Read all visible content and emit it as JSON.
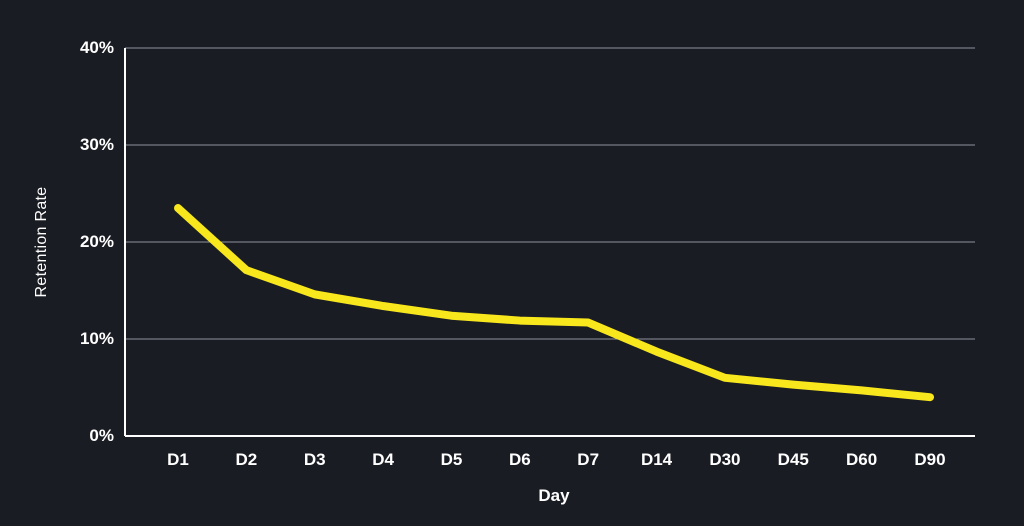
{
  "chart_data": {
    "type": "line",
    "title": "",
    "xlabel": "Day",
    "ylabel": "Retention Rate",
    "categories": [
      "D1",
      "D2",
      "D3",
      "D4",
      "D5",
      "D6",
      "D7",
      "D14",
      "D30",
      "D45",
      "D60",
      "D90"
    ],
    "series": [
      {
        "name": "Retention Rate",
        "values": [
          23.5,
          17.1,
          14.6,
          13.4,
          12.4,
          11.9,
          11.7,
          8.7,
          6.0,
          5.3,
          4.7,
          4.0
        ]
      }
    ],
    "ylim": [
      0,
      40
    ],
    "yticks": [
      0,
      10,
      20,
      30,
      40
    ],
    "ytick_labels": [
      "0%",
      "10%",
      "20%",
      "30%",
      "40%"
    ],
    "grid": true,
    "legend": "none",
    "colors": {
      "line": "#f8e71c",
      "background": "#1a1c24",
      "axis": "#ffffff",
      "grid": "#8f929b",
      "text": "#ffffff"
    }
  }
}
